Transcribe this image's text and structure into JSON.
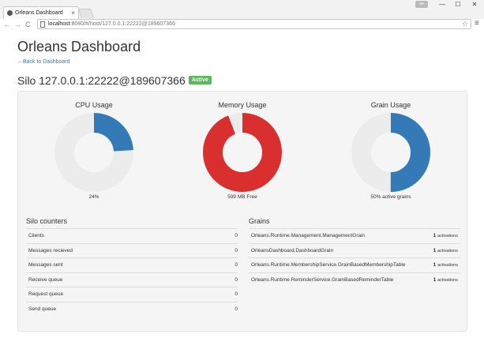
{
  "browser": {
    "tab_title": "Orleans Dashboard",
    "tab_close": "×",
    "url_host": "localhost",
    "url_path": ":8080/#/host/127.0.0.1:22222@189607366",
    "window_controls": [
      "—",
      "☐",
      "✕"
    ],
    "nav": [
      "←",
      "→",
      "C"
    ],
    "star": "☆",
    "menu": "≡",
    "user_badge": "ee"
  },
  "page": {
    "title": "Orleans Dashboard",
    "back_link": "←Back to Dashboard",
    "silo_title": "Silo 127.0.0.1:22222@189607366",
    "status_badge": "Active",
    "status_color": "#5cb85c"
  },
  "gauges": [
    {
      "title": "CPU Usage",
      "footer": "24%",
      "fraction": 0.24,
      "color": "#337ab7"
    },
    {
      "title": "Memory Usage",
      "footer": "599 MB Free",
      "fraction": 0.94,
      "color": "#d9302f"
    },
    {
      "title": "Grain Usage",
      "footer": "50% active grains",
      "fraction": 0.5,
      "color": "#337ab7"
    }
  ],
  "silo_counters": {
    "title": "Silo counters",
    "rows": [
      {
        "label": "Clients",
        "value": "0"
      },
      {
        "label": "Messages recieved",
        "value": "0"
      },
      {
        "label": "Messages sent",
        "value": "0"
      },
      {
        "label": "Receive queue",
        "value": "0"
      },
      {
        "label": "Request queue",
        "value": "0"
      },
      {
        "label": "Send queue",
        "value": "0"
      }
    ]
  },
  "grains": {
    "title": "Grains",
    "unit_label": "activations",
    "rows": [
      {
        "name": "Orleans.Runtime.Management.ManagementGrain",
        "count": "1"
      },
      {
        "name": "OrleansDashboard.DashboardGrain",
        "count": "1"
      },
      {
        "name": "Orleans.Runtime.MembershipService.GrainBasedMembershipTable",
        "count": "1"
      },
      {
        "name": "Orleans.Runtime.ReminderService.GrainBasedReminderTable",
        "count": "1"
      }
    ]
  }
}
